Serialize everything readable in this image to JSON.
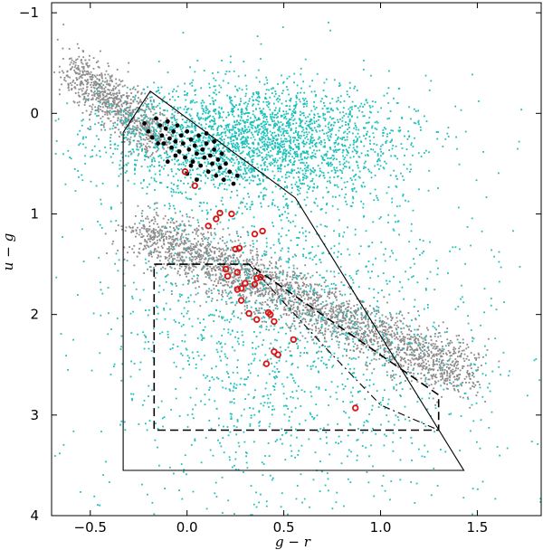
{
  "chart_data": {
    "type": "scatter",
    "title": "",
    "xlabel": "g − r",
    "ylabel": "u − g",
    "xlim": [
      -0.7,
      1.83
    ],
    "ylim": [
      4.0,
      -1.1
    ],
    "y_inverted": true,
    "grid": false,
    "x_ticks": [
      -0.5,
      0.0,
      0.5,
      1.0,
      1.5
    ],
    "y_ticks": [
      -1,
      0,
      1,
      2,
      3,
      4
    ],
    "x_tick_labels": [
      "−0.5",
      "0.0",
      "0.5",
      "1.0",
      "1.5"
    ],
    "y_tick_labels": [
      "−1",
      "0",
      "1",
      "2",
      "3",
      "4"
    ],
    "colors": {
      "cyan": "#1ec0bc",
      "gray": "#8a8a8a",
      "black": "#000000",
      "red": "#dd1111"
    },
    "density_regions": [
      {
        "color": "cyan",
        "shape": "cloud",
        "center": [
          0.35,
          0.25
        ],
        "spread": [
          0.38,
          0.28
        ],
        "weight": 2600
      },
      {
        "color": "cyan",
        "shape": "cloud",
        "center": [
          0.45,
          1.9
        ],
        "spread": [
          0.45,
          0.9
        ],
        "weight": 1300
      },
      {
        "color": "cyan",
        "shape": "cloud",
        "center": [
          0.8,
          2.8
        ],
        "spread": [
          0.6,
          0.8
        ],
        "weight": 500
      },
      {
        "color": "gray",
        "shape": "band",
        "start": [
          -0.6,
          -0.45
        ],
        "end": [
          -0.15,
          0.25
        ],
        "width": 0.12,
        "weight": 900
      },
      {
        "color": "gray",
        "shape": "band",
        "start": [
          -0.25,
          1.15
        ],
        "end": [
          1.45,
          2.6
        ],
        "width": 0.14,
        "weight": 2600
      }
    ],
    "black_points": [
      [
        -0.22,
        0.1
      ],
      [
        -0.2,
        0.18
      ],
      [
        -0.18,
        0.24
      ],
      [
        -0.16,
        0.05
      ],
      [
        -0.14,
        0.12
      ],
      [
        -0.13,
        0.22
      ],
      [
        -0.12,
        0.3
      ],
      [
        -0.11,
        0.15
      ],
      [
        -0.1,
        0.08
      ],
      [
        -0.09,
        0.25
      ],
      [
        -0.08,
        0.34
      ],
      [
        -0.07,
        0.18
      ],
      [
        -0.06,
        0.28
      ],
      [
        -0.05,
        0.12
      ],
      [
        -0.04,
        0.38
      ],
      [
        -0.03,
        0.22
      ],
      [
        -0.02,
        0.3
      ],
      [
        -0.01,
        0.44
      ],
      [
        0.0,
        0.18
      ],
      [
        0.01,
        0.36
      ],
      [
        0.02,
        0.26
      ],
      [
        0.03,
        0.48
      ],
      [
        0.04,
        0.32
      ],
      [
        0.05,
        0.4
      ],
      [
        0.06,
        0.22
      ],
      [
        0.07,
        0.52
      ],
      [
        0.08,
        0.36
      ],
      [
        0.09,
        0.44
      ],
      [
        0.1,
        0.3
      ],
      [
        0.11,
        0.58
      ],
      [
        0.12,
        0.42
      ],
      [
        0.13,
        0.5
      ],
      [
        0.14,
        0.36
      ],
      [
        0.15,
        0.62
      ],
      [
        0.16,
        0.46
      ],
      [
        0.17,
        0.54
      ],
      [
        0.18,
        0.4
      ],
      [
        0.19,
        0.66
      ],
      [
        0.2,
        0.5
      ],
      [
        0.22,
        0.58
      ],
      [
        0.24,
        0.7
      ],
      [
        0.26,
        0.62
      ],
      [
        -0.1,
        0.48
      ],
      [
        0.0,
        0.6
      ],
      [
        0.05,
        0.66
      ],
      [
        -0.06,
        0.42
      ],
      [
        0.02,
        0.52
      ],
      [
        -0.15,
        0.3
      ],
      [
        0.1,
        0.2
      ],
      [
        0.14,
        0.28
      ]
    ],
    "red_circles": [
      [
        -0.01,
        0.58
      ],
      [
        0.04,
        0.72
      ],
      [
        0.11,
        1.12
      ],
      [
        0.15,
        1.05
      ],
      [
        0.17,
        0.99
      ],
      [
        0.23,
        1.0
      ],
      [
        0.35,
        1.2
      ],
      [
        0.39,
        1.17
      ],
      [
        0.25,
        1.35
      ],
      [
        0.27,
        1.34
      ],
      [
        0.2,
        1.55
      ],
      [
        0.21,
        1.62
      ],
      [
        0.26,
        1.58
      ],
      [
        0.26,
        1.75
      ],
      [
        0.28,
        1.74
      ],
      [
        0.3,
        1.69
      ],
      [
        0.35,
        1.7
      ],
      [
        0.36,
        1.64
      ],
      [
        0.38,
        1.63
      ],
      [
        0.28,
        1.86
      ],
      [
        0.32,
        1.99
      ],
      [
        0.36,
        2.05
      ],
      [
        0.42,
        1.98
      ],
      [
        0.43,
        2.0
      ],
      [
        0.45,
        2.07
      ],
      [
        0.45,
        2.37
      ],
      [
        0.47,
        2.4
      ],
      [
        0.41,
        2.49
      ],
      [
        0.55,
        2.25
      ],
      [
        0.87,
        2.93
      ]
    ],
    "selection_boxes": [
      {
        "style": "solid",
        "points": [
          [
            -0.33,
            0.19
          ],
          [
            -0.19,
            -0.22
          ],
          [
            0.56,
            0.84
          ],
          [
            1.43,
            3.55
          ],
          [
            -0.33,
            3.55
          ],
          [
            -0.33,
            0.19
          ]
        ]
      },
      {
        "style": "dashed",
        "points": [
          [
            -0.17,
            1.5
          ],
          [
            0.32,
            1.5
          ],
          [
            1.3,
            2.8
          ],
          [
            1.3,
            3.15
          ],
          [
            -0.17,
            3.15
          ],
          [
            -0.17,
            1.5
          ]
        ]
      },
      {
        "style": "dashdot",
        "points": [
          [
            0.32,
            1.5
          ],
          [
            0.7,
            2.3
          ],
          [
            1.0,
            2.9
          ],
          [
            1.3,
            3.15
          ]
        ]
      }
    ]
  }
}
